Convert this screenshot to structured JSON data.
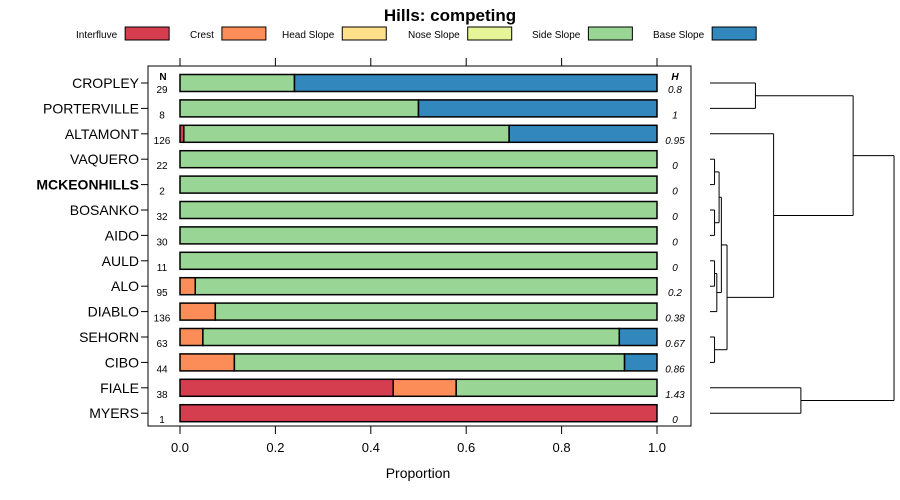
{
  "chart_data": {
    "type": "bar",
    "orientation": "horizontal",
    "stacked": true,
    "title": "Hills: competing",
    "xlabel": "Proportion",
    "xlim": [
      0,
      1
    ],
    "xticks": [
      "0.0",
      "0.2",
      "0.4",
      "0.6",
      "0.8",
      "1.0"
    ],
    "n_header": "N",
    "h_header": "H",
    "legend": [
      {
        "name": "Interfluve",
        "color": "#d53e4f"
      },
      {
        "name": "Crest",
        "color": "#fc8d59"
      },
      {
        "name": "Head Slope",
        "color": "#fee08b"
      },
      {
        "name": "Nose Slope",
        "color": "#e6f598"
      },
      {
        "name": "Side Slope",
        "color": "#99d594"
      },
      {
        "name": "Base Slope",
        "color": "#3288bd"
      }
    ],
    "rows": [
      {
        "label": "CROPLEY",
        "bold": false,
        "n": "29",
        "h": "0.8",
        "values": [
          0,
          0,
          0,
          0,
          0.24,
          0.76
        ]
      },
      {
        "label": "PORTERVILLE",
        "bold": false,
        "n": "8",
        "h": "1",
        "values": [
          0,
          0,
          0,
          0,
          0.5,
          0.5
        ]
      },
      {
        "label": "ALTAMONT",
        "bold": false,
        "n": "126",
        "h": "0.95",
        "values": [
          0.008,
          0,
          0,
          0,
          0.682,
          0.31
        ]
      },
      {
        "label": "VAQUERO",
        "bold": false,
        "n": "22",
        "h": "0",
        "values": [
          0,
          0,
          0,
          0,
          1,
          0
        ]
      },
      {
        "label": "MCKEONHILLS",
        "bold": true,
        "n": "2",
        "h": "0",
        "values": [
          0,
          0,
          0,
          0,
          1,
          0
        ]
      },
      {
        "label": "BOSANKO",
        "bold": false,
        "n": "32",
        "h": "0",
        "values": [
          0,
          0,
          0,
          0,
          1,
          0
        ]
      },
      {
        "label": "AIDO",
        "bold": false,
        "n": "30",
        "h": "0",
        "values": [
          0,
          0,
          0,
          0,
          1,
          0
        ]
      },
      {
        "label": "AULD",
        "bold": false,
        "n": "11",
        "h": "0",
        "values": [
          0,
          0,
          0,
          0,
          1,
          0
        ]
      },
      {
        "label": "ALO",
        "bold": false,
        "n": "95",
        "h": "0.2",
        "values": [
          0,
          0.032,
          0,
          0,
          0.968,
          0
        ]
      },
      {
        "label": "DIABLO",
        "bold": false,
        "n": "136",
        "h": "0.38",
        "values": [
          0,
          0.074,
          0,
          0,
          0.926,
          0
        ]
      },
      {
        "label": "SEHORN",
        "bold": false,
        "n": "63",
        "h": "0.67",
        "values": [
          0,
          0.048,
          0,
          0,
          0.873,
          0.079
        ]
      },
      {
        "label": "CIBO",
        "bold": false,
        "n": "44",
        "h": "0.86",
        "values": [
          0,
          0.114,
          0,
          0,
          0.818,
          0.068
        ]
      },
      {
        "label": "FIALE",
        "bold": false,
        "n": "38",
        "h": "1.43",
        "values": [
          0.447,
          0.132,
          0,
          0,
          0.421,
          0
        ]
      },
      {
        "label": "MYERS",
        "bold": false,
        "n": "1",
        "h": "0",
        "values": [
          1,
          0,
          0,
          0,
          0,
          0
        ]
      }
    ],
    "dendrogram": {
      "type": "hierarchical-clustering",
      "merges": [
        {
          "a": "CROPLEY",
          "b": "PORTERVILLE",
          "height": 0.4
        },
        {
          "a": "VAQUERO",
          "b": "MCKEONHILLS",
          "height": 0.04
        },
        {
          "a": "BOSANKO",
          "b": "AIDO",
          "height": 0.04
        },
        {
          "a": "AULD",
          "b": "ALO",
          "height": 0.04
        },
        {
          "a": "SEHORN",
          "b": "CIBO",
          "height": 0.04
        },
        {
          "a": "m:VAQUERO+MCKEONHILLS",
          "b": "m:BOSANKO+AIDO",
          "height": 0.08
        },
        {
          "a": "m:AULD+ALO",
          "b": "DIABLO",
          "height": 0.06
        },
        {
          "a": "m:VAQUERO-AIDO",
          "b": "m:AULD-DIABLO",
          "height": 0.1
        },
        {
          "a": "m:VAQUERO-DIABLO",
          "b": "m:SEHORN+CIBO",
          "height": 0.15
        },
        {
          "a": "ALTAMONT",
          "b": "m:VAQUERO-CIBO",
          "height": 0.56
        },
        {
          "a": "m:CROPLEY+PORTERVILLE",
          "b": "m:ALTAMONT-CIBO",
          "height": 1.26
        },
        {
          "a": "FIALE",
          "b": "MYERS",
          "height": 0.8
        },
        {
          "a": "m:CROPLEY-CIBO",
          "b": "m:FIALE+MYERS",
          "height": 1.62
        }
      ]
    }
  }
}
